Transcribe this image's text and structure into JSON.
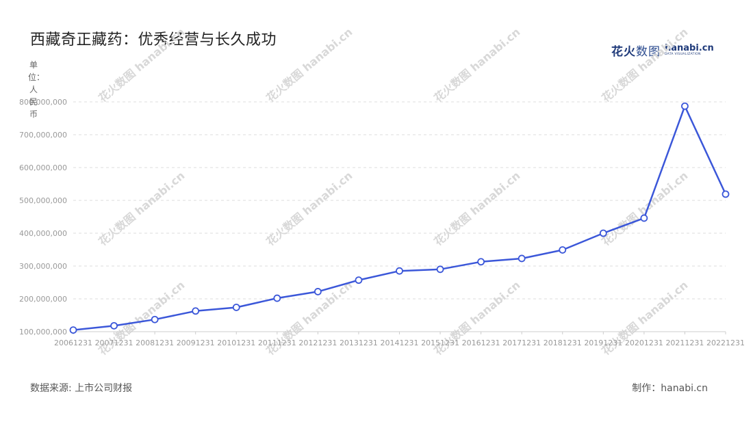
{
  "header": {
    "title": "西藏奇正藏药：优秀经营与长久成功",
    "logo_cn": "花火",
    "logo_cn_light": "数图",
    "logo_en": "hanabi.cn",
    "logo_en_sub": "DATA VISUALIZATION"
  },
  "unit_label": "单位：人民币",
  "footer": {
    "source": "数据来源: 上市公司财报",
    "credit": "制作：hanabi.cn"
  },
  "colors": {
    "line": "#3b57d9",
    "grid": "#dddddd"
  },
  "chart_data": {
    "type": "line",
    "title": "西藏奇正藏药：优秀经营与长久成功",
    "ylabel": "单位：人民币",
    "xlabel": "",
    "categories": [
      "20061231",
      "20071231",
      "20081231",
      "20091231",
      "20101231",
      "20111231",
      "20121231",
      "20131231",
      "20141231",
      "20151231",
      "20161231",
      "20171231",
      "20181231",
      "20191231",
      "20201231",
      "20211231",
      "20221231"
    ],
    "values": [
      105000000,
      118000000,
      137000000,
      163000000,
      174000000,
      202000000,
      222000000,
      257000000,
      285000000,
      290000000,
      313000000,
      323000000,
      349000000,
      400000000,
      446000000,
      787000000,
      519000000
    ],
    "y_ticks": [
      "100,000,000",
      "200,000,000",
      "300,000,000",
      "400,000,000",
      "500,000,000",
      "600,000,000",
      "700,000,000",
      "800,000,000"
    ],
    "ylim": [
      100000000,
      800000000
    ],
    "grid": true,
    "legend": "none",
    "markers": "hollow-circle"
  }
}
